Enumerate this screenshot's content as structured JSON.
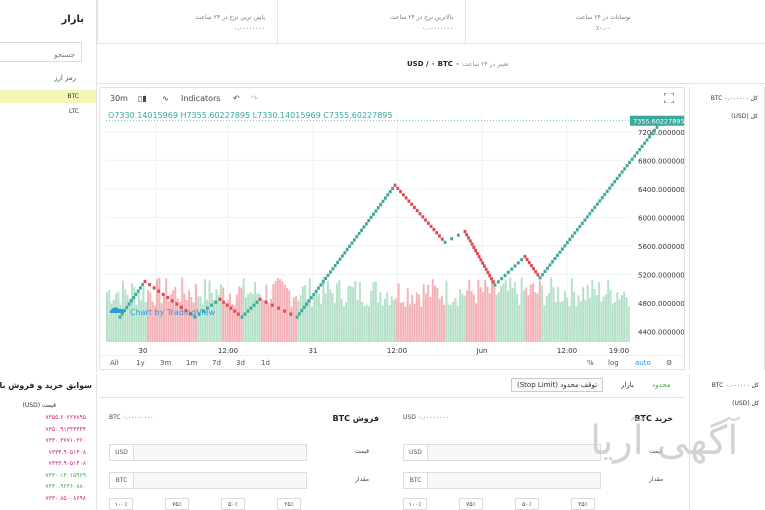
{
  "market": {
    "title": "بازار",
    "search_placeholder": "جستجو",
    "column_header": "رمز ارز",
    "items": [
      {
        "label": "BTC",
        "active": true
      },
      {
        "label": "LTC",
        "active": false
      }
    ]
  },
  "stats": [
    {
      "label": "نوسانات در ۲۴ ساعت",
      "value": "٪۰.۰۰"
    },
    {
      "label": "بالاترین نرخ در ۲۴ ساعت",
      "value": "۰.۰۰۰۰۰۰۰۰"
    },
    {
      "label": "پایین ترین نرخ در ۲۴ ساعت",
      "value": "۰.۰۰۰۰۰۰۰۰"
    }
  ],
  "pair": {
    "name": "USD / ۰ BTC ۰",
    "change_label": "تغییر در ۲۴ ساعت:"
  },
  "chart_toolbar": {
    "interval": "30m",
    "indicators": "Indicators",
    "ohlc": "O7330.14015969  H7355.60227895  L7330.14015969  C7355.60227895",
    "watermark": "Chart by TradingView",
    "last_price": "7355.60227895"
  },
  "chart_bottom": {
    "ranges": [
      "All",
      "1y",
      "3m",
      "1m",
      "7d",
      "3d",
      "1d"
    ],
    "percent": "%",
    "log": "log",
    "auto": "auto"
  },
  "chart_data": {
    "type": "renko",
    "x_tick_labels": [
      "30",
      "12:00",
      "31",
      "12:00",
      "Jun",
      "12:00",
      "19:00"
    ],
    "y_tick_labels": [
      "7200.00000000",
      "6800.00000000",
      "6400.00000000",
      "6000.00000000",
      "5600.00000000",
      "5200.00000000",
      "4800.00000000",
      "4400.00000000"
    ],
    "ylim": [
      4250,
      7450
    ],
    "bricks_path": [
      [
        20,
        4600
      ],
      [
        45,
        5100
      ],
      [
        95,
        4600
      ],
      [
        120,
        4850
      ],
      [
        142,
        4600
      ],
      [
        160,
        4850
      ],
      [
        197,
        4600
      ],
      [
        295,
        6450
      ],
      [
        345,
        5650
      ],
      [
        365,
        5800
      ],
      [
        395,
        5050
      ],
      [
        425,
        5450
      ],
      [
        440,
        5150
      ],
      [
        562,
        7355
      ]
    ],
    "volume_bars": 230,
    "up_color": "#3aa89b",
    "down_color": "#e0484f",
    "volume_up_color": "#a8dcc0",
    "volume_down_color": "#f2a5ab"
  },
  "right_top": {
    "title": "کل BTC ۰.۰۰۰۰۰۰",
    "sub": "کل (USD)"
  },
  "right_bottom": {
    "title": "کل BTC ۰.۰۰۰۰۰۰",
    "sub": "کل (USD)"
  },
  "history": {
    "title": "سوابق خرید و فروش بازار",
    "column": "قیمت (USD)",
    "rows": [
      {
        "value": "۷۳۵۵.۶۰۲۲۷۸۹۵",
        "color": "pink"
      },
      {
        "value": "۷۳۵۰.۹۱۳۴۴۴۴۴",
        "color": "pink"
      },
      {
        "value": "۷۳۴۰.۳۷۷۱۰۳۶۰",
        "color": "pink"
      },
      {
        "value": "۷۳۳۴.۹۰۵۱۴۰۸",
        "color": "pink"
      },
      {
        "value": "۷۳۳۳.۹۰۵۱۴۰۸",
        "color": "pink"
      },
      {
        "value": "۷۳۳۰.۱۴۰۱۵۹۶۹",
        "color": "green"
      },
      {
        "value": "۷۳۳۰.۹۶۴۶۰۸۸۰",
        "color": "green"
      },
      {
        "value": "۷۳۳۰.۸۵۰۰۸۶۹۸",
        "color": "pink"
      }
    ]
  },
  "order_tabs": [
    {
      "label": "محدود",
      "active": true,
      "boxed": false
    },
    {
      "label": "بازار",
      "active": false,
      "boxed": false
    },
    {
      "label": "توقف محدود (Stop Limit)",
      "active": false,
      "boxed": true
    }
  ],
  "buy": {
    "title": "خرید BTC",
    "balance": "USD ۰.۰۰۰۰۰۰۰۰",
    "price_label": "قیمت",
    "price_unit": "USD",
    "amount_label": "مقدار",
    "amount_unit": "BTC",
    "percents": [
      "۱۰۰٪",
      "۷۵٪",
      "۵۰٪",
      "۲۵٪"
    ]
  },
  "sell": {
    "title": "فروش BTC",
    "balance": "BTC ۰.۰۰۰۰۰۰۰۰",
    "price_label": "قیمت",
    "price_unit": "USD",
    "amount_label": "مقدار",
    "amount_unit": "BTC",
    "percents": [
      "۱۰۰٪",
      "۷۵٪",
      "۵۰٪",
      "۲۵٪"
    ]
  },
  "watermark": "آگهی آریا"
}
